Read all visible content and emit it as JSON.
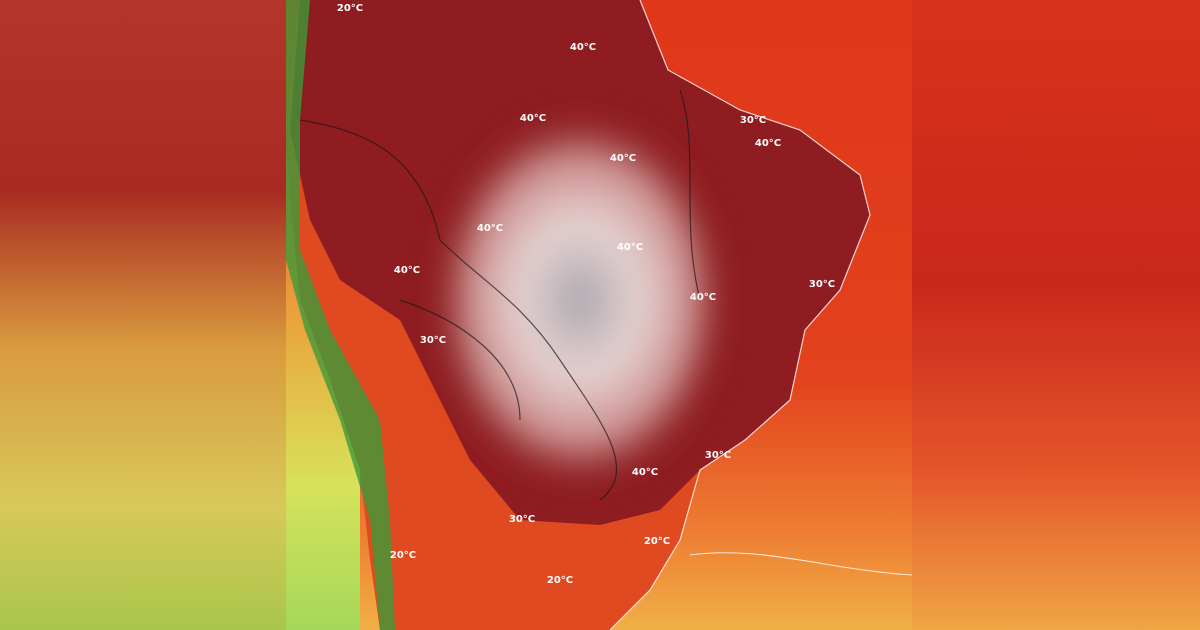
{
  "map": {
    "contour_labels": [
      "40°C",
      "40°C",
      "40°C",
      "40°C",
      "40°C",
      "40°C",
      "40°C",
      "40°C",
      "40°C",
      "30°C",
      "30°C",
      "30°C",
      "30°C",
      "30°C",
      "20°C",
      "20°C",
      "20°C",
      "20°C"
    ]
  }
}
